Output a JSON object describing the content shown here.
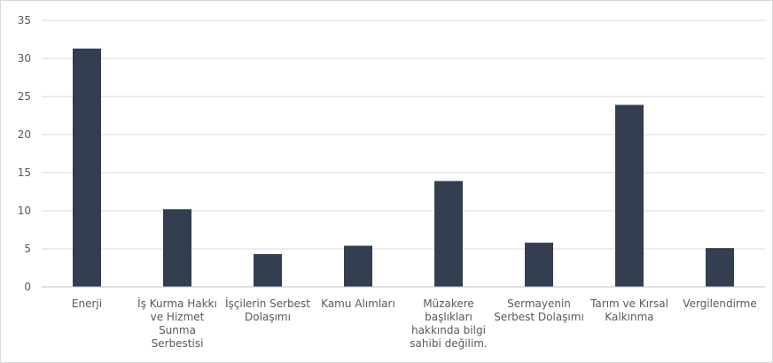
{
  "chart_data": {
    "type": "bar",
    "title": "",
    "xlabel": "",
    "ylabel": "",
    "ylim": [
      0,
      35
    ],
    "y_ticks": [
      0,
      5,
      10,
      15,
      20,
      25,
      30,
      35
    ],
    "grid": true,
    "legend": "none",
    "bar_color": "#333f50",
    "categories": [
      [
        "Enerji"
      ],
      [
        "İş Kurma Hakkı",
        "ve Hizmet",
        "Sunma",
        "Serbestisi"
      ],
      [
        "İşçilerin Serbest",
        "Dolaşımı"
      ],
      [
        "Kamu Alımları"
      ],
      [
        "Müzakere",
        "başlıkları",
        "hakkında bilgi",
        "sahibi değilim."
      ],
      [
        "Sermayenin",
        "Serbest Dolaşımı"
      ],
      [
        "Tarım ve Kırsal",
        "Kalkınma"
      ],
      [
        "Vergilendirme"
      ]
    ],
    "values": [
      31.3,
      10.2,
      4.3,
      5.4,
      13.9,
      5.8,
      23.9,
      5.1
    ]
  }
}
